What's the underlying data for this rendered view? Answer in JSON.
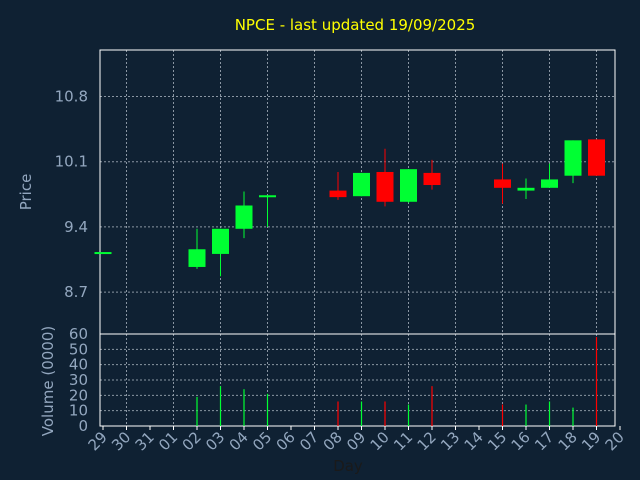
{
  "chart_data": [
    {
      "type": "candlestick",
      "title": "NPCE - last updated 19/09/2025",
      "ylabel": "Price",
      "ylim": [
        8.25,
        11.3
      ],
      "yticks": [
        8.7,
        9.4,
        10.1,
        10.8
      ],
      "categories": [
        "29",
        "30",
        "31",
        "01",
        "02",
        "03",
        "04",
        "05",
        "06",
        "07",
        "08",
        "09",
        "10",
        "11",
        "12",
        "13",
        "14",
        "15",
        "16",
        "17",
        "18",
        "19",
        "20"
      ],
      "candles": [
        {
          "day": "29",
          "open": 9.13,
          "close": 9.13,
          "high": 9.13,
          "low": 9.13
        },
        {
          "day": "02",
          "open": 8.97,
          "close": 9.16,
          "high": 9.38,
          "low": 8.95
        },
        {
          "day": "03",
          "open": 9.11,
          "close": 9.38,
          "high": 9.38,
          "low": 8.87
        },
        {
          "day": "04",
          "open": 9.38,
          "close": 9.63,
          "high": 9.78,
          "low": 9.28
        },
        {
          "day": "05",
          "open": 9.72,
          "close": 9.74,
          "high": 9.74,
          "low": 9.4
        },
        {
          "day": "08",
          "open": 9.79,
          "close": 9.72,
          "high": 9.99,
          "low": 9.69
        },
        {
          "day": "09",
          "open": 9.73,
          "close": 9.98,
          "high": 9.98,
          "low": 9.73
        },
        {
          "day": "10",
          "open": 9.99,
          "close": 9.67,
          "high": 10.24,
          "low": 9.62
        },
        {
          "day": "11",
          "open": 9.67,
          "close": 10.02,
          "high": 10.02,
          "low": 9.66
        },
        {
          "day": "12",
          "open": 9.98,
          "close": 9.85,
          "high": 10.12,
          "low": 9.8
        },
        {
          "day": "15",
          "open": 9.91,
          "close": 9.82,
          "high": 10.08,
          "low": 9.65
        },
        {
          "day": "16",
          "open": 9.79,
          "close": 9.82,
          "high": 9.92,
          "low": 9.7
        },
        {
          "day": "17",
          "open": 9.82,
          "close": 9.91,
          "high": 10.08,
          "low": 9.82
        },
        {
          "day": "18",
          "open": 9.95,
          "close": 10.33,
          "high": 10.33,
          "low": 9.87
        },
        {
          "day": "19",
          "open": 10.34,
          "close": 9.95,
          "high": 10.34,
          "low": 9.95
        }
      ],
      "colors": {
        "up": "#00ff33",
        "down": "#ff0000",
        "axis": "#ffffff",
        "grid": "#8a96a3",
        "text": "#93a7bf",
        "title": "#ffff00",
        "background": "#0f2133"
      }
    },
    {
      "type": "bar",
      "ylabel": "Volume (0000)",
      "xlabel": "Day",
      "ylim": [
        0,
        60
      ],
      "yticks": [
        0,
        10,
        20,
        30,
        40,
        50,
        60
      ],
      "categories": [
        "29",
        "30",
        "31",
        "01",
        "02",
        "03",
        "04",
        "05",
        "06",
        "07",
        "08",
        "09",
        "10",
        "11",
        "12",
        "13",
        "14",
        "15",
        "16",
        "17",
        "18",
        "19",
        "20"
      ],
      "bars": [
        {
          "day": "02",
          "value": 19,
          "direction": "up"
        },
        {
          "day": "03",
          "value": 26,
          "direction": "up"
        },
        {
          "day": "04",
          "value": 24,
          "direction": "up"
        },
        {
          "day": "05",
          "value": 21,
          "direction": "up"
        },
        {
          "day": "08",
          "value": 16,
          "direction": "down"
        },
        {
          "day": "09",
          "value": 16,
          "direction": "up"
        },
        {
          "day": "10",
          "value": 16,
          "direction": "down"
        },
        {
          "day": "11",
          "value": 14,
          "direction": "up"
        },
        {
          "day": "12",
          "value": 26,
          "direction": "down"
        },
        {
          "day": "15",
          "value": 14,
          "direction": "down"
        },
        {
          "day": "16",
          "value": 14,
          "direction": "up"
        },
        {
          "day": "17",
          "value": 16,
          "direction": "up"
        },
        {
          "day": "18",
          "value": 12,
          "direction": "up"
        },
        {
          "day": "19",
          "value": 58,
          "direction": "down"
        }
      ]
    }
  ]
}
